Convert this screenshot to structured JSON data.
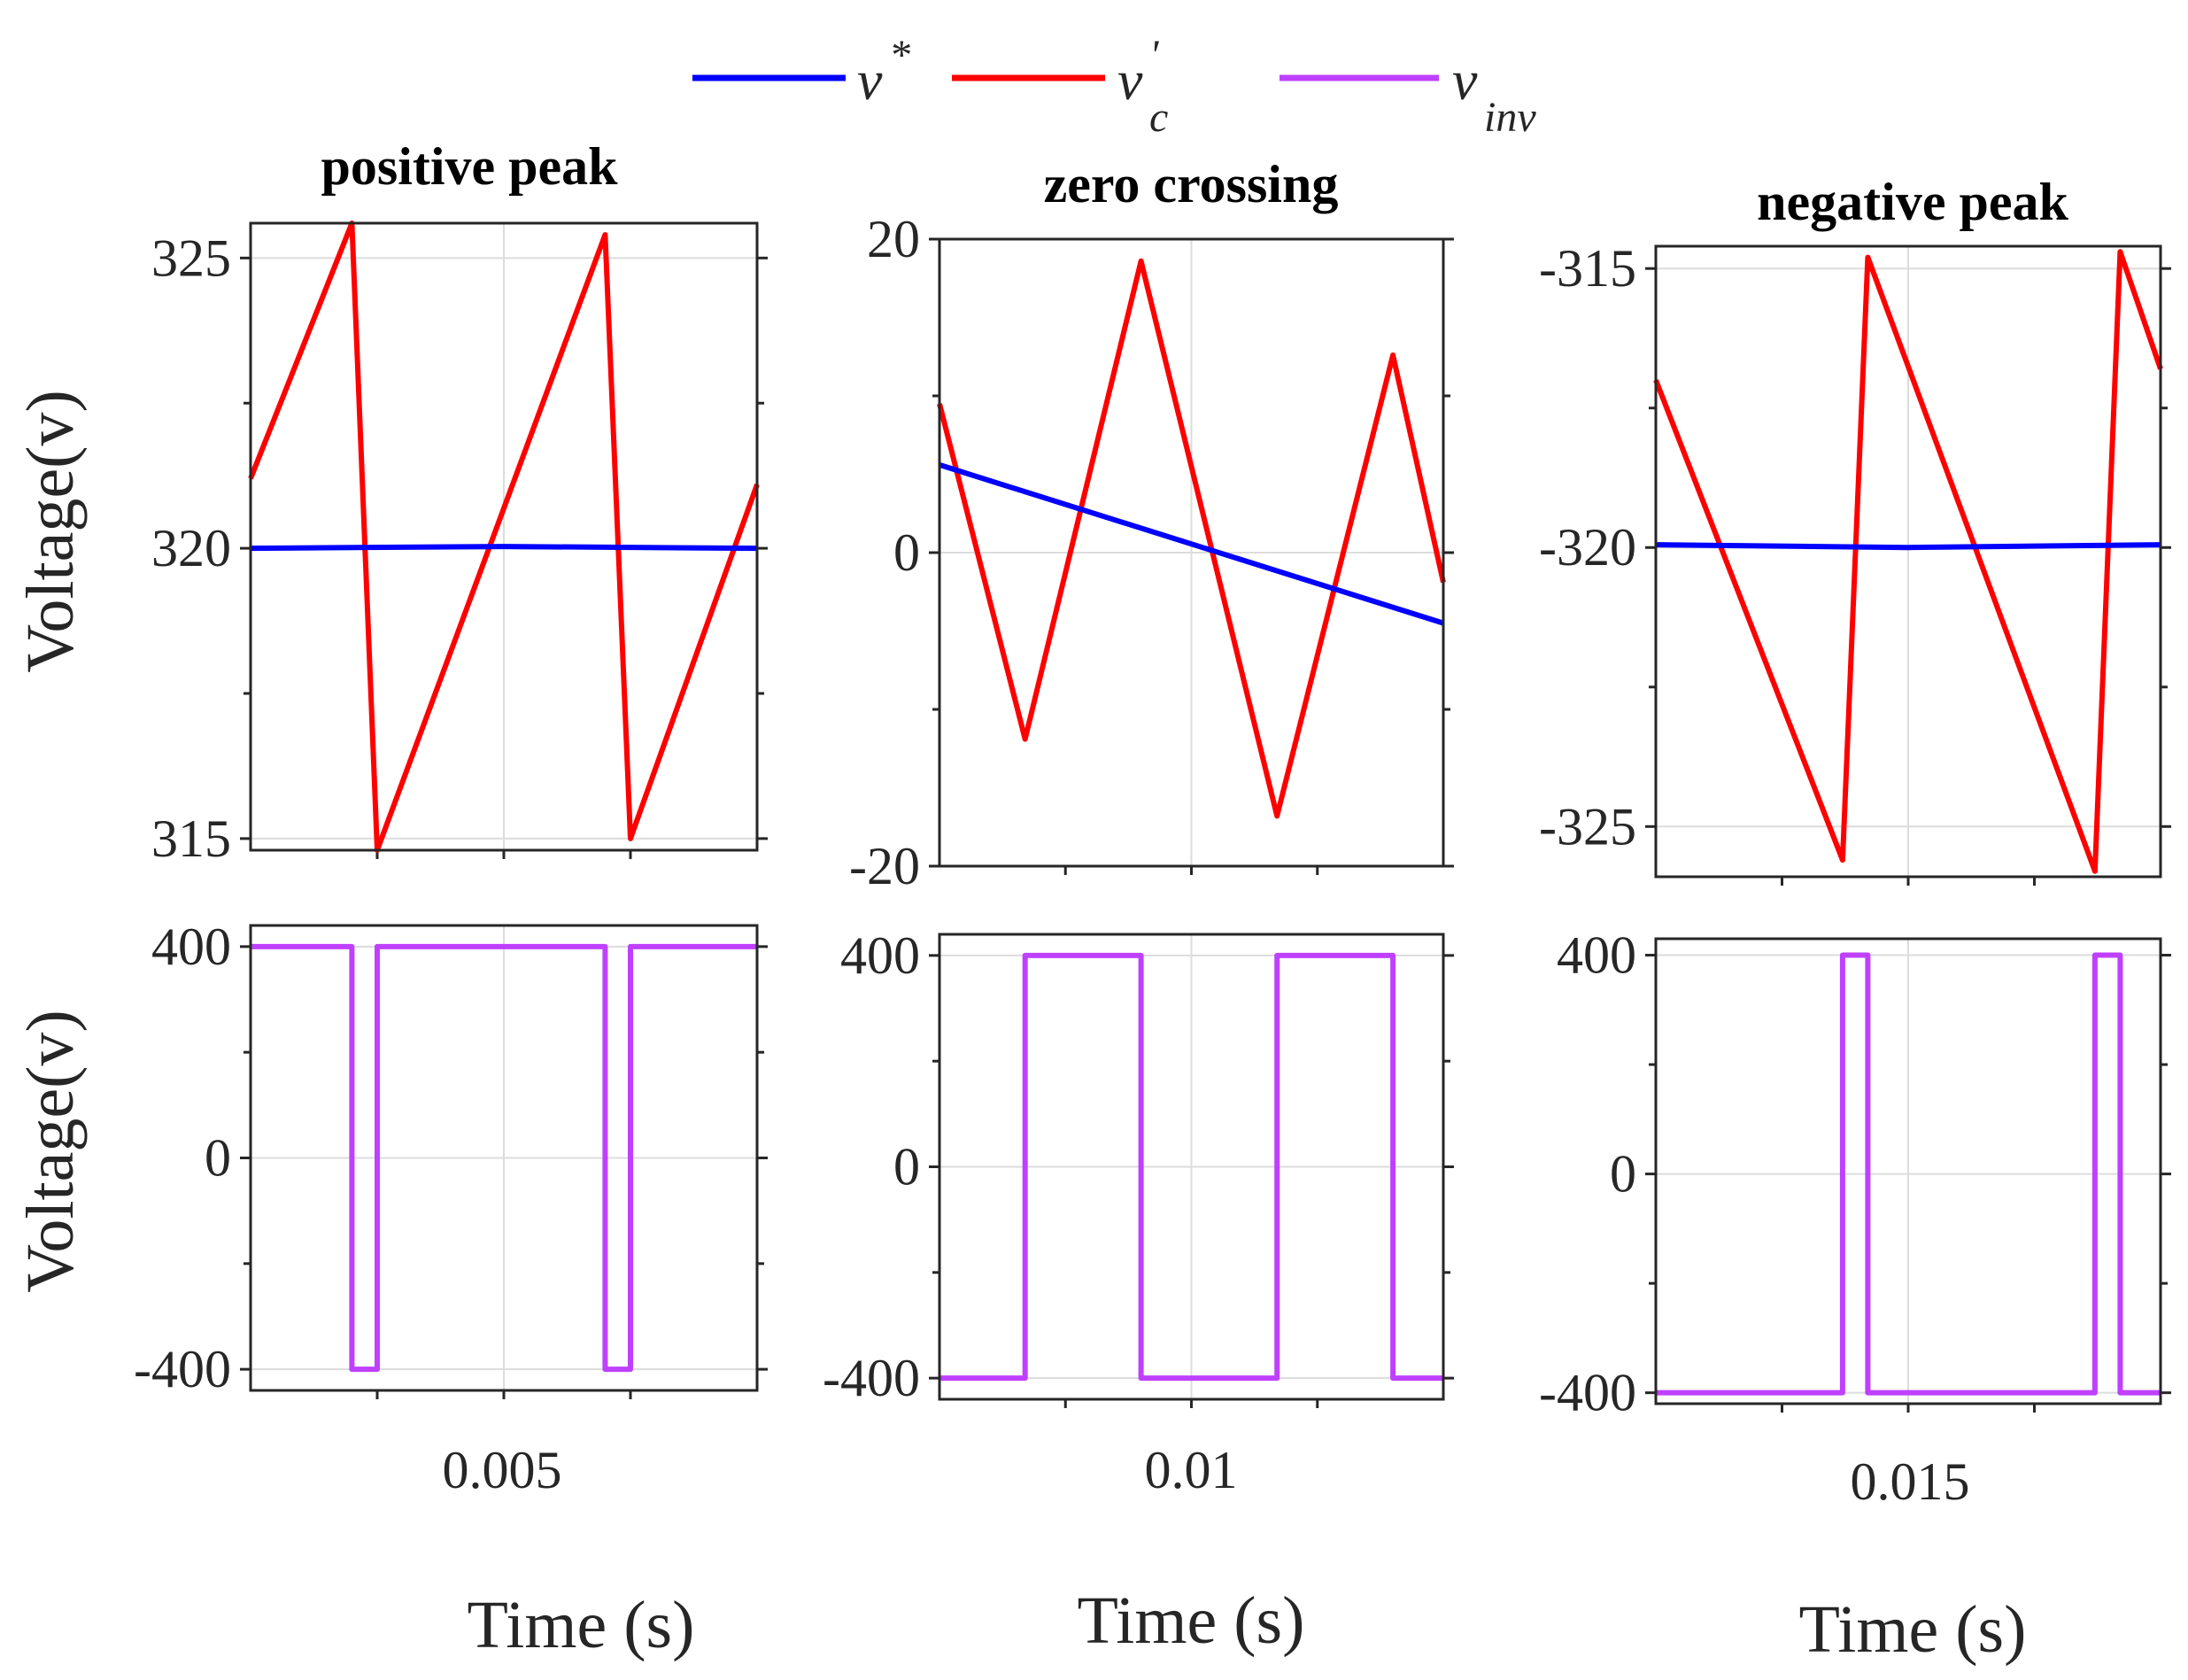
{
  "colors": {
    "v_star": "#0000ff",
    "vc_prime": "#ff0000",
    "v_inv": "#bf40ff"
  },
  "legend": [
    {
      "key": "v_star",
      "base": "v",
      "sup": "*",
      "sub": ""
    },
    {
      "key": "vc_prime",
      "base": "v",
      "sup": "'",
      "sub": "c"
    },
    {
      "key": "v_inv",
      "base": "v",
      "sup": "",
      "sub": "inv"
    }
  ],
  "ylabel": "Voltage(v)",
  "xlabel": "Time (s)",
  "chart_data": [
    {
      "type": "line",
      "title": "positive peak",
      "x_tick": "0.005",
      "top": {
        "ylim": [
          314.8,
          325.6
        ],
        "yticks": [
          315,
          320,
          325
        ],
        "ytick_labels": [
          "315",
          "320",
          "325"
        ],
        "series": [
          {
            "key": "vc_prime",
            "name": "v'c",
            "x": [
              0,
              0.2,
              0.25,
              0.7,
              0.75,
              1.0
            ],
            "y": [
              321.2,
              325.6,
              314.8,
              325.4,
              315.0,
              321.1
            ]
          },
          {
            "key": "v_star",
            "name": "v*",
            "x": [
              0,
              0.5,
              1.0
            ],
            "y": [
              320.0,
              320.03,
              320.0
            ]
          }
        ]
      },
      "bottom": {
        "ylim": [
          -440,
          440
        ],
        "yticks": [
          -400,
          0,
          400
        ],
        "ytick_labels": [
          "-400",
          "0",
          "400"
        ],
        "series": [
          {
            "key": "v_inv",
            "name": "vinv",
            "x": [
              0,
              0.2,
              0.2,
              0.25,
              0.25,
              0.7,
              0.7,
              0.75,
              0.75,
              1.0
            ],
            "y": [
              400,
              400,
              -400,
              -400,
              400,
              400,
              -400,
              -400,
              400,
              400
            ]
          }
        ]
      }
    },
    {
      "type": "line",
      "title": "zero crossing",
      "x_tick": "0.01",
      "top": {
        "ylim": [
          -20,
          20
        ],
        "yticks": [
          -20,
          0,
          20
        ],
        "ytick_labels": [
          "-20",
          "0",
          "20"
        ],
        "series": [
          {
            "key": "vc_prime",
            "name": "v'c",
            "x": [
              0,
              0.17,
              0.4,
              0.67,
              0.9,
              1.0
            ],
            "y": [
              9.5,
              -11.9,
              18.6,
              -16.8,
              12.6,
              -1.9
            ]
          },
          {
            "key": "v_star",
            "name": "v*",
            "x": [
              0,
              1.0
            ],
            "y": [
              5.6,
              -4.5
            ]
          }
        ]
      },
      "bottom": {
        "ylim": [
          -440,
          440
        ],
        "yticks": [
          -400,
          0,
          400
        ],
        "ytick_labels": [
          "-400",
          "0",
          "400"
        ],
        "series": [
          {
            "key": "v_inv",
            "name": "vinv",
            "x": [
              0,
              0.17,
              0.17,
              0.4,
              0.4,
              0.67,
              0.67,
              0.9,
              0.9,
              1.0
            ],
            "y": [
              -400,
              -400,
              400,
              400,
              -400,
              -400,
              400,
              400,
              -400,
              -400
            ]
          }
        ]
      }
    },
    {
      "type": "line",
      "title": "negative peak",
      "x_tick": "0.015",
      "top": {
        "ylim": [
          -325.9,
          -314.6
        ],
        "yticks": [
          -325,
          -320,
          -315
        ],
        "ytick_labels": [
          "-325",
          "-320",
          "-315"
        ],
        "series": [
          {
            "key": "vc_prime",
            "name": "v'c",
            "x": [
              0,
              0.37,
              0.42,
              0.87,
              0.92,
              1.0
            ],
            "y": [
              -317.0,
              -325.6,
              -314.8,
              -325.8,
              -314.7,
              -316.8
            ]
          },
          {
            "key": "v_star",
            "name": "v*",
            "x": [
              0,
              0.5,
              1.0
            ],
            "y": [
              -319.95,
              -320.0,
              -319.95
            ]
          }
        ]
      },
      "bottom": {
        "ylim": [
          -420,
          430
        ],
        "yticks": [
          -400,
          0,
          400
        ],
        "ytick_labels": [
          "-400",
          "0",
          "400"
        ],
        "series": [
          {
            "key": "v_inv",
            "name": "vinv",
            "x": [
              0,
              0.37,
              0.37,
              0.42,
              0.42,
              0.87,
              0.87,
              0.92,
              0.92,
              1.0
            ],
            "y": [
              -400,
              -400,
              400,
              400,
              -400,
              -400,
              400,
              400,
              -400,
              -400
            ]
          }
        ]
      }
    }
  ]
}
